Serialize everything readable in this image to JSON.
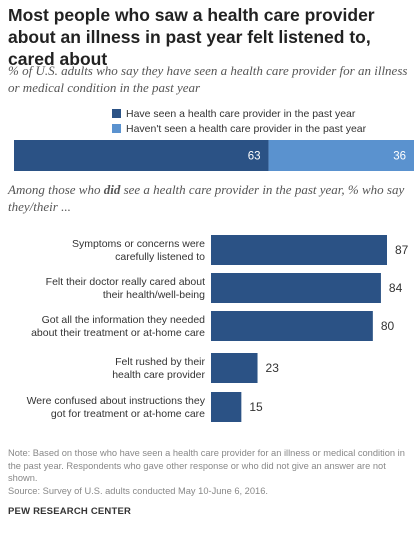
{
  "title": "Most people who saw a health care provider about an illness in past year felt listened to, cared about",
  "subtitle": "% of U.S. adults who say they have seen a health care provider for an illness or medical condition in the past year",
  "colors": {
    "dark": "#2b5285",
    "light": "#5a92cf"
  },
  "chart_data": [
    {
      "type": "bar",
      "stacked": true,
      "orientation": "horizontal",
      "series": [
        {
          "name": "Have seen a health care provider in the past year",
          "values": [
            63
          ],
          "color": "#2b5285"
        },
        {
          "name": "Haven't seen a health care provider in the past year",
          "values": [
            36
          ],
          "color": "#5a92cf"
        }
      ],
      "legend_position": "top"
    },
    {
      "type": "bar",
      "orientation": "horizontal",
      "heading_pre": "Among those who ",
      "heading_bold": "did",
      "heading_post": " see a health care provider in the past year, % who say they/their ...",
      "categories": [
        [
          "Symptoms or concerns were",
          "carefully listened to"
        ],
        [
          "Felt their doctor really cared about",
          "their health/well-being"
        ],
        [
          "Got all the information they needed",
          "about their treatment or at-home care"
        ],
        [
          "Felt rushed by their",
          "health care provider"
        ],
        [
          "Were confused about instructions they",
          "got for treatment or at-home care"
        ]
      ],
      "values": [
        87,
        84,
        80,
        23,
        15
      ],
      "xlim": [
        0,
        100
      ],
      "color": "#2b5285"
    }
  ],
  "note": "Note: Based on those who have seen a health care provider for an illness or medical condition in the past year. Respondents who gave other response or who did not give an answer are not shown.",
  "source": "Source: Survey of U.S. adults conducted May 10-June 6, 2016.",
  "brand": "PEW RESEARCH CENTER"
}
